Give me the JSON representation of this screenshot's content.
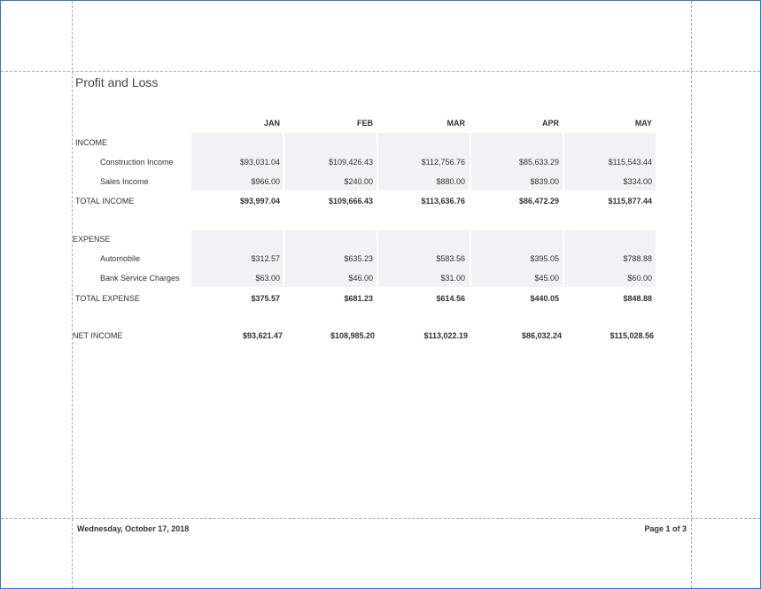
{
  "report": {
    "title": "Profit and Loss",
    "columns": [
      "JAN",
      "FEB",
      "MAR",
      "APR",
      "MAY"
    ],
    "income": {
      "label": "INCOME",
      "rows": [
        {
          "label": "Construction Income",
          "values": [
            "$93,031.04",
            "$109,426.43",
            "$112,756.76",
            "$85,633.29",
            "$115,543.44"
          ]
        },
        {
          "label": "Sales Income",
          "values": [
            "$966.00",
            "$240.00",
            "$880.00",
            "$839.00",
            "$334.00"
          ]
        }
      ],
      "total": {
        "label": "TOTAL INCOME",
        "values": [
          "$93,997.04",
          "$109,666.43",
          "$113,636.76",
          "$86,472.29",
          "$115,877.44"
        ]
      }
    },
    "expense": {
      "label": "EXPENSE",
      "rows": [
        {
          "label": "Automobile",
          "values": [
            "$312.57",
            "$635.23",
            "$583.56",
            "$395.05",
            "$788.88"
          ]
        },
        {
          "label": "Bank Service Charges",
          "values": [
            "$63.00",
            "$46.00",
            "$31.00",
            "$45.00",
            "$60.00"
          ]
        }
      ],
      "total": {
        "label": "TOTAL EXPENSE",
        "values": [
          "$375.57",
          "$681.23",
          "$614.56",
          "$440.05",
          "$848.88"
        ]
      }
    },
    "net_income": {
      "label": "NET INCOME",
      "values": [
        "$93,621.47",
        "$108,985.20",
        "$113,022.19",
        "$86,032.24",
        "$115,028.56"
      ]
    },
    "footer": {
      "date": "Wednesday, October 17, 2018",
      "page": "Page 1 of 3"
    }
  }
}
